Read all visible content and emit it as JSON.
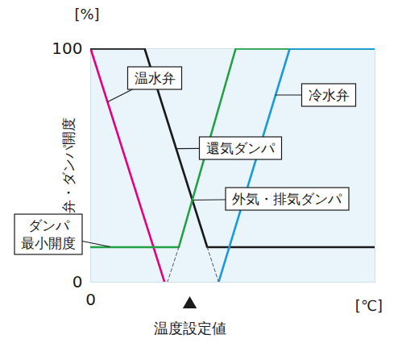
{
  "chart_data": {
    "type": "line",
    "y_label": "弁・ダンパ開度",
    "y_unit": "[%]",
    "x_unit": "[℃]",
    "xlim": [
      0,
      100
    ],
    "ylim": [
      0,
      100
    ],
    "xticks": [
      0
    ],
    "yticks": [
      0,
      100
    ],
    "grid": false,
    "setpoint": {
      "x": 35,
      "label": "温度設定値"
    },
    "annotations": [
      [
        "ダンパ",
        "最小開度"
      ]
    ],
    "series": [
      {
        "name": "温水弁",
        "color": "#e4007f",
        "line_style": "solid",
        "x": [
          0,
          26
        ],
        "values": [
          100,
          0
        ]
      },
      {
        "name": "還気ダンパ",
        "color": "#1a1a1a",
        "line_style": "solid",
        "x": [
          0,
          19,
          41,
          100
        ],
        "values": [
          100,
          100,
          15,
          15
        ]
      },
      {
        "name": "外気・排気ダンパ",
        "color": "#22a045",
        "line_style": "solid",
        "x": [
          0,
          31,
          51,
          100
        ],
        "values": [
          15,
          15,
          100,
          100
        ]
      },
      {
        "name": "冷水弁",
        "color": "#1a9ad6",
        "line_style": "solid",
        "x": [
          45,
          70,
          100
        ],
        "values": [
          0,
          100,
          100
        ]
      },
      {
        "color": "#555555",
        "line_style": "dashed",
        "x": [
          31,
          27
        ],
        "values": [
          15,
          0
        ]
      },
      {
        "color": "#555555",
        "line_style": "dashed",
        "x": [
          41,
          45
        ],
        "values": [
          15,
          0
        ]
      }
    ]
  }
}
